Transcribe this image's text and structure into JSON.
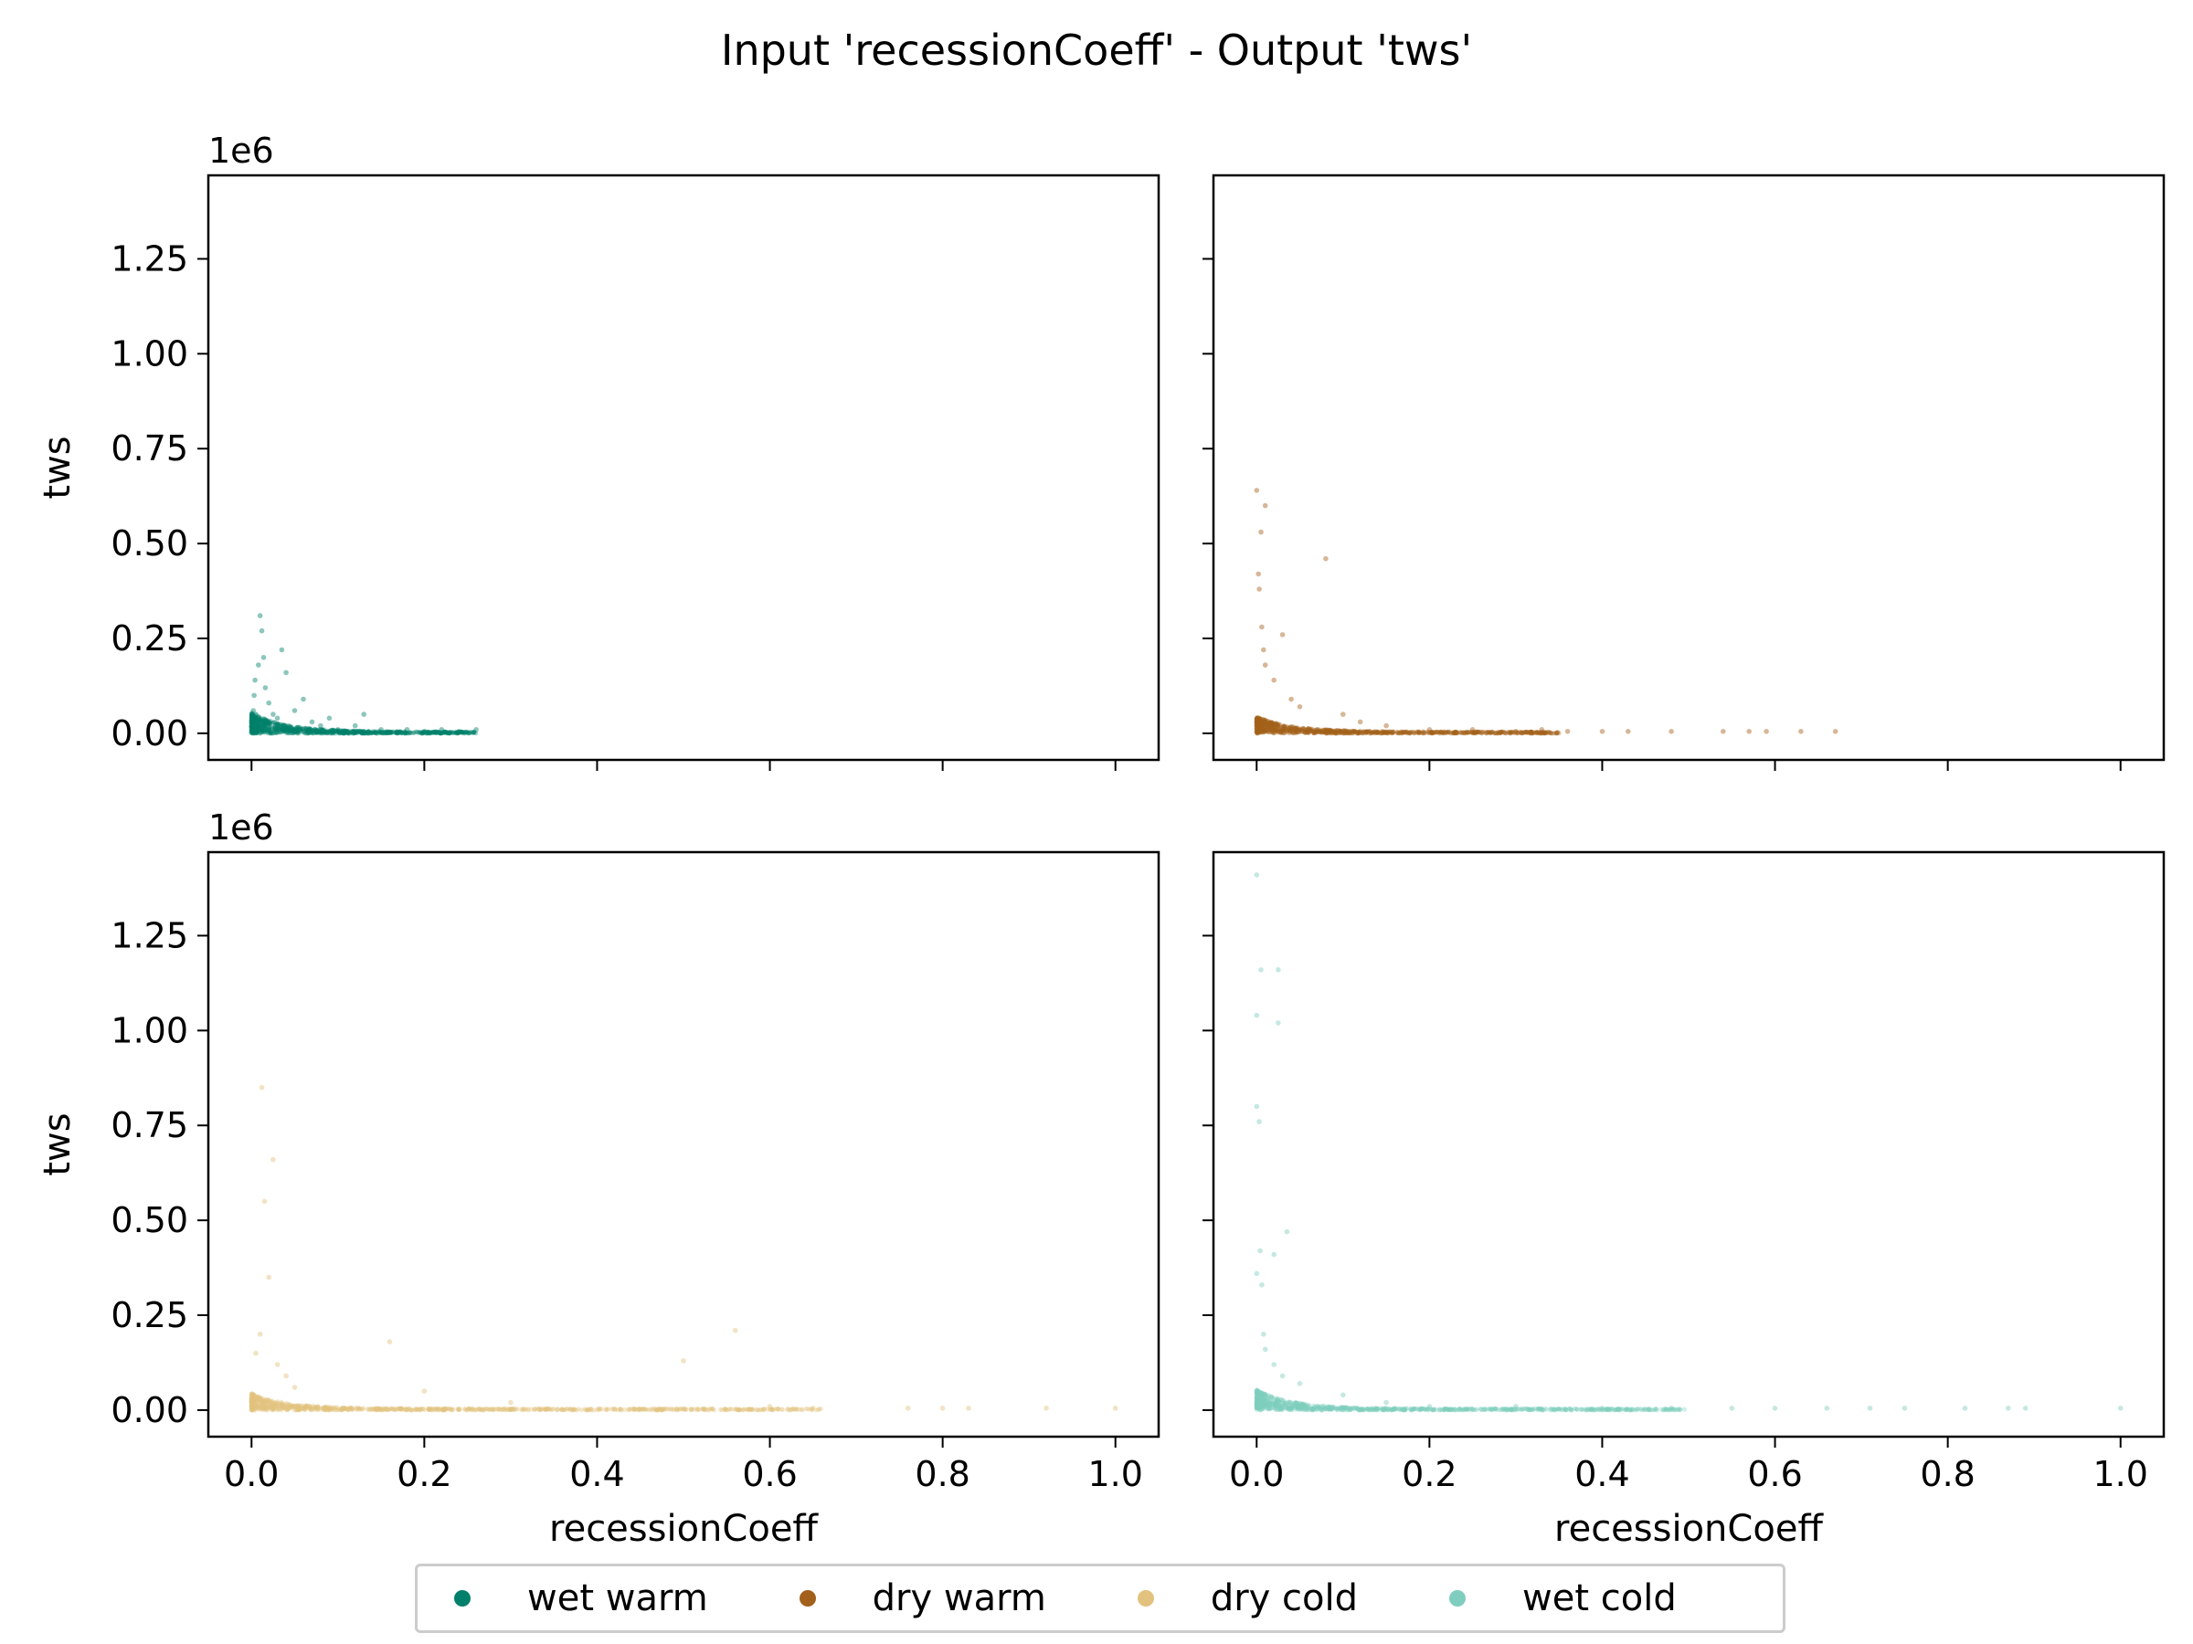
{
  "figure": {
    "title": "Input 'recessionCoeff' - Output 'tws'"
  },
  "legend": {
    "items": [
      {
        "label": "wet warm",
        "color": "#00806b"
      },
      {
        "label": "dry warm",
        "color": "#a3601a"
      },
      {
        "label": "dry cold",
        "color": "#e2c27e"
      },
      {
        "label": "wet cold",
        "color": "#7fcdbe"
      }
    ]
  },
  "chart_data": [
    {
      "type": "scatter",
      "panel": "top-left",
      "series": [
        {
          "name": "wet warm",
          "color": "#00806b"
        }
      ],
      "xlabel": "",
      "ylabel": "tws",
      "offset_label": "1e6",
      "xlim": [
        -0.05,
        1.05
      ],
      "ylim": [
        -0.07,
        1.47
      ],
      "xticks": [
        0.0,
        0.2,
        0.4,
        0.6,
        0.8,
        1.0
      ],
      "xtick_labels": [],
      "yticks": [
        0.0,
        0.25,
        0.5,
        0.75,
        1.0,
        1.25
      ],
      "ytick_labels": [
        "0.00",
        "0.25",
        "0.50",
        "0.75",
        "1.00",
        "1.25"
      ],
      "points": [
        [
          0.0,
          0.02
        ],
        [
          0.002,
          0.06
        ],
        [
          0.003,
          0.1
        ],
        [
          0.004,
          0.14
        ],
        [
          0.005,
          0.05
        ],
        [
          0.006,
          0.03
        ],
        [
          0.008,
          0.18
        ],
        [
          0.01,
          0.31
        ],
        [
          0.012,
          0.27
        ],
        [
          0.014,
          0.2
        ],
        [
          0.016,
          0.12
        ],
        [
          0.02,
          0.08
        ],
        [
          0.025,
          0.05
        ],
        [
          0.03,
          0.04
        ],
        [
          0.035,
          0.22
        ],
        [
          0.04,
          0.16
        ],
        [
          0.05,
          0.06
        ],
        [
          0.06,
          0.09
        ],
        [
          0.07,
          0.03
        ],
        [
          0.08,
          0.02
        ],
        [
          0.09,
          0.04
        ],
        [
          0.1,
          0.01
        ],
        [
          0.12,
          0.02
        ],
        [
          0.13,
          0.05
        ],
        [
          0.15,
          0.01
        ],
        [
          0.18,
          0.01
        ],
        [
          0.2,
          0.005
        ],
        [
          0.22,
          0.01
        ],
        [
          0.24,
          0.005
        ],
        [
          0.26,
          0.01
        ]
      ],
      "band": {
        "x0": 0.0,
        "x1": 0.26,
        "y_max": 0.05
      }
    },
    {
      "type": "scatter",
      "panel": "top-right",
      "series": [
        {
          "name": "dry warm",
          "color": "#a3601a"
        }
      ],
      "xlabel": "",
      "ylabel": "",
      "xlim": [
        -0.05,
        1.05
      ],
      "ylim": [
        -0.07,
        1.47
      ],
      "xticks": [
        0.0,
        0.2,
        0.4,
        0.6,
        0.8,
        1.0
      ],
      "xtick_labels": [],
      "yticks": [
        0.0,
        0.25,
        0.5,
        0.75,
        1.0,
        1.25
      ],
      "ytick_labels": [],
      "points": [
        [
          0.0,
          0.64
        ],
        [
          0.005,
          0.53
        ],
        [
          0.01,
          0.6
        ],
        [
          0.002,
          0.42
        ],
        [
          0.003,
          0.38
        ],
        [
          0.006,
          0.28
        ],
        [
          0.008,
          0.22
        ],
        [
          0.01,
          0.18
        ],
        [
          0.02,
          0.14
        ],
        [
          0.03,
          0.26
        ],
        [
          0.04,
          0.09
        ],
        [
          0.05,
          0.07
        ],
        [
          0.08,
          0.46
        ],
        [
          0.1,
          0.05
        ],
        [
          0.12,
          0.03
        ],
        [
          0.15,
          0.02
        ],
        [
          0.2,
          0.01
        ],
        [
          0.25,
          0.01
        ],
        [
          0.3,
          0.005
        ],
        [
          0.33,
          0.01
        ],
        [
          0.36,
          0.005
        ],
        [
          0.4,
          0.005
        ],
        [
          0.43,
          0.005
        ],
        [
          0.48,
          0.005
        ],
        [
          0.54,
          0.005
        ],
        [
          0.57,
          0.005
        ],
        [
          0.59,
          0.005
        ],
        [
          0.63,
          0.005
        ],
        [
          0.67,
          0.005
        ]
      ],
      "band": {
        "x0": 0.0,
        "x1": 0.35,
        "y_max": 0.04
      }
    },
    {
      "type": "scatter",
      "panel": "bottom-left",
      "series": [
        {
          "name": "dry cold",
          "color": "#e2c27e"
        }
      ],
      "xlabel": "recessionCoeff",
      "ylabel": "tws",
      "offset_label": "1e6",
      "xlim": [
        -0.05,
        1.05
      ],
      "ylim": [
        -0.07,
        1.47
      ],
      "xticks": [
        0.0,
        0.2,
        0.4,
        0.6,
        0.8,
        1.0
      ],
      "xtick_labels": [
        "0.0",
        "0.2",
        "0.4",
        "0.6",
        "0.8",
        "1.0"
      ],
      "yticks": [
        0.0,
        0.25,
        0.5,
        0.75,
        1.0,
        1.25
      ],
      "ytick_labels": [
        "0.00",
        "0.25",
        "0.50",
        "0.75",
        "1.00",
        "1.25"
      ],
      "points": [
        [
          0.012,
          0.85
        ],
        [
          0.025,
          0.66
        ],
        [
          0.015,
          0.55
        ],
        [
          0.02,
          0.35
        ],
        [
          0.01,
          0.2
        ],
        [
          0.005,
          0.15
        ],
        [
          0.03,
          0.12
        ],
        [
          0.04,
          0.09
        ],
        [
          0.05,
          0.06
        ],
        [
          0.16,
          0.18
        ],
        [
          0.2,
          0.05
        ],
        [
          0.3,
          0.02
        ],
        [
          0.5,
          0.13
        ],
        [
          0.56,
          0.21
        ],
        [
          0.6,
          0.01
        ],
        [
          0.65,
          0.005
        ],
        [
          0.76,
          0.005
        ],
        [
          0.8,
          0.005
        ],
        [
          0.83,
          0.005
        ],
        [
          0.92,
          0.005
        ],
        [
          1.0,
          0.005
        ]
      ],
      "band": {
        "x0": 0.0,
        "x1": 0.66,
        "y_max": 0.04
      }
    },
    {
      "type": "scatter",
      "panel": "bottom-right",
      "series": [
        {
          "name": "wet cold",
          "color": "#7fcdbe"
        }
      ],
      "xlabel": "recessionCoeff",
      "ylabel": "",
      "xlim": [
        -0.05,
        1.05
      ],
      "ylim": [
        -0.07,
        1.47
      ],
      "xticks": [
        0.0,
        0.2,
        0.4,
        0.6,
        0.8,
        1.0
      ],
      "xtick_labels": [
        "0.0",
        "0.2",
        "0.4",
        "0.6",
        "0.8",
        "1.0"
      ],
      "yticks": [
        0.0,
        0.25,
        0.5,
        0.75,
        1.0,
        1.25
      ],
      "ytick_labels": [],
      "points": [
        [
          0.0,
          1.41
        ],
        [
          0.005,
          1.16
        ],
        [
          0.025,
          1.16
        ],
        [
          0.0,
          1.04
        ],
        [
          0.025,
          1.02
        ],
        [
          0.0,
          0.8
        ],
        [
          0.003,
          0.76
        ],
        [
          0.035,
          0.47
        ],
        [
          0.004,
          0.42
        ],
        [
          0.02,
          0.41
        ],
        [
          0.0,
          0.36
        ],
        [
          0.006,
          0.33
        ],
        [
          0.008,
          0.2
        ],
        [
          0.01,
          0.16
        ],
        [
          0.02,
          0.12
        ],
        [
          0.03,
          0.09
        ],
        [
          0.05,
          0.07
        ],
        [
          0.1,
          0.04
        ],
        [
          0.15,
          0.02
        ],
        [
          0.2,
          0.01
        ],
        [
          0.3,
          0.01
        ],
        [
          0.4,
          0.005
        ],
        [
          0.48,
          0.005
        ],
        [
          0.55,
          0.005
        ],
        [
          0.6,
          0.005
        ],
        [
          0.66,
          0.005
        ],
        [
          0.71,
          0.005
        ],
        [
          0.75,
          0.005
        ],
        [
          0.82,
          0.005
        ],
        [
          0.87,
          0.005
        ],
        [
          0.89,
          0.005
        ],
        [
          1.0,
          0.005
        ]
      ],
      "band": {
        "x0": 0.0,
        "x1": 0.5,
        "y_max": 0.05
      }
    }
  ]
}
